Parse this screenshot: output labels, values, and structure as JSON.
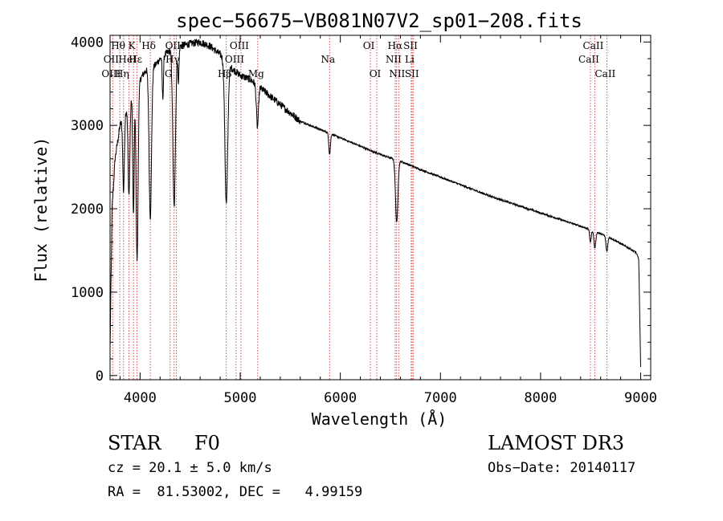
{
  "chart_data": {
    "type": "line",
    "title": "spec−56675−VB081N07V2_sp01−208.fits",
    "xlabel": "Wavelength (Å)",
    "ylabel": "Flux (relative)",
    "xlim": [
      3700,
      9100
    ],
    "ylim": [
      -50,
      4080
    ],
    "xticks": [
      4000,
      5000,
      6000,
      7000,
      8000,
      9000
    ],
    "yticks": [
      0,
      1000,
      2000,
      3000,
      4000
    ],
    "continuum": {
      "x": [
        3700,
        3720,
        3750,
        3800,
        3850,
        3900,
        3950,
        4000,
        4050,
        4100,
        4150,
        4200,
        4300,
        4400,
        4500,
        4600,
        4700,
        4800,
        4900,
        5000,
        5100,
        5200,
        5300,
        5400,
        5500,
        5600,
        5800,
        6000,
        6200,
        6400,
        6600,
        6800,
        7000,
        7500,
        8000,
        8500,
        8700,
        8950,
        8980,
        9000
      ],
      "y": [
        300,
        2000,
        2600,
        3000,
        3150,
        3300,
        3450,
        3550,
        3650,
        3700,
        3720,
        3800,
        3900,
        3950,
        3980,
        4000,
        3950,
        3850,
        3700,
        3600,
        3550,
        3450,
        3350,
        3250,
        3150,
        3050,
        2950,
        2850,
        2750,
        2650,
        2570,
        2470,
        2380,
        2150,
        1950,
        1750,
        1650,
        1480,
        1400,
        100
      ]
    },
    "absorption_lines": [
      {
        "center": 3835,
        "depth": 900,
        "width": 8
      },
      {
        "center": 3889,
        "depth": 1100,
        "width": 9
      },
      {
        "center": 3934,
        "depth": 1500,
        "width": 7
      },
      {
        "center": 3970,
        "depth": 2100,
        "width": 10
      },
      {
        "center": 4102,
        "depth": 1800,
        "width": 12
      },
      {
        "center": 4227,
        "depth": 500,
        "width": 6
      },
      {
        "center": 4340,
        "depth": 1900,
        "width": 13
      },
      {
        "center": 4383,
        "depth": 400,
        "width": 6
      },
      {
        "center": 4861,
        "depth": 1700,
        "width": 14
      },
      {
        "center": 5172,
        "depth": 500,
        "width": 10
      },
      {
        "center": 5893,
        "depth": 250,
        "width": 8
      },
      {
        "center": 6563,
        "depth": 750,
        "width": 12
      },
      {
        "center": 8498,
        "depth": 150,
        "width": 8
      },
      {
        "center": 8542,
        "depth": 200,
        "width": 9
      },
      {
        "center": 8662,
        "depth": 180,
        "width": 9
      }
    ],
    "line_markers": [
      {
        "label": "Hθ",
        "x": 3797,
        "row": 0
      },
      {
        "label": "K",
        "x": 3934,
        "row": 0
      },
      {
        "label": "Hδ",
        "x": 4102,
        "row": 0
      },
      {
        "label": "OIII",
        "x": 4363,
        "row": 0
      },
      {
        "label": "OIII",
        "x": 5007,
        "row": 0
      },
      {
        "label": "OI",
        "x": 6300,
        "row": 0
      },
      {
        "label": "Hα",
        "x": 6563,
        "row": 0
      },
      {
        "label": "SII",
        "x": 6717,
        "row": 0
      },
      {
        "label": "CaII",
        "x": 8542,
        "row": 0
      },
      {
        "label": "OII",
        "x": 3727,
        "row": 1
      },
      {
        "label": "HeI",
        "x": 3889,
        "row": 1
      },
      {
        "label": "Hε",
        "x": 3970,
        "row": 1
      },
      {
        "label": "Hγ",
        "x": 4340,
        "row": 1
      },
      {
        "label": "OIII",
        "x": 4959,
        "row": 1
      },
      {
        "label": "Na",
        "x": 5893,
        "row": 1
      },
      {
        "label": "NII",
        "x": 6548,
        "row": 1
      },
      {
        "label": "Li",
        "x": 6708,
        "row": 1
      },
      {
        "label": "CaII",
        "x": 8498,
        "row": 1
      },
      {
        "label": "OIII",
        "x": 3727,
        "row": 2
      },
      {
        "label": "Hη",
        "x": 3835,
        "row": 2
      },
      {
        "label": "G",
        "x": 4300,
        "row": 2
      },
      {
        "label": "Hβ",
        "x": 4861,
        "row": 2
      },
      {
        "label": "Mg",
        "x": 5175,
        "row": 2
      },
      {
        "label": "OI",
        "x": 6364,
        "row": 2
      },
      {
        "label": "NII",
        "x": 6583,
        "row": 2
      },
      {
        "label": "SII",
        "x": 6731,
        "row": 2
      },
      {
        "label": "CaII",
        "x": 8662,
        "row": 2
      }
    ],
    "marker_wavelengths": [
      3727,
      3797,
      3835,
      3889,
      3934,
      3970,
      4102,
      4300,
      4340,
      4363,
      4861,
      4959,
      5007,
      5175,
      5893,
      6300,
      6364,
      6548,
      6563,
      6583,
      6708,
      6717,
      6731,
      8498,
      8542,
      8662
    ],
    "line_color": "#000000",
    "marker_color": "#cc2222"
  },
  "footer": {
    "object_class": "STAR",
    "subclass": "F0",
    "survey": "LAMOST DR3",
    "redshift": "cz = 20.1 ± 5.0 km/s",
    "obs_date": "Obs−Date: 20140117",
    "coords": "RA =  81.53002, DEC =   4.99159"
  }
}
